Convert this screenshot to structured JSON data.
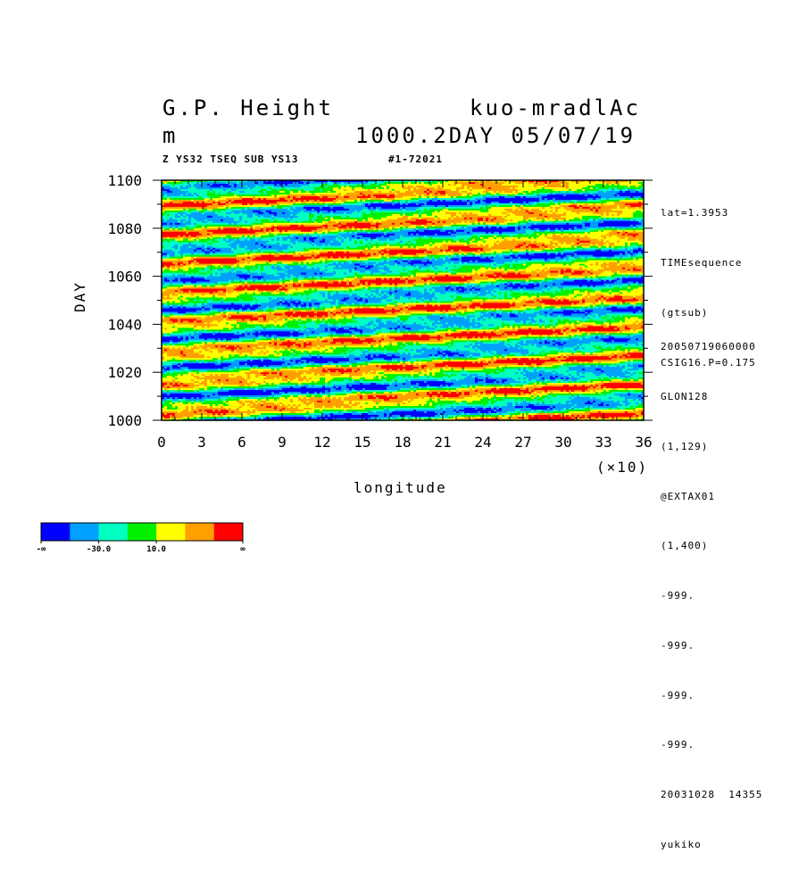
{
  "header": {
    "title_left": "G.P. Height",
    "title_right": "kuo-mradlAc",
    "units": "m",
    "subtitle": "1000.2DAY 05/07/19",
    "info_line": "Z YS32 TSEQ SUB YS13",
    "info_id": "#1-72021"
  },
  "side_info": {
    "top": [
      "lat=1.3953",
      "TIMEsequence",
      "(gtsub)",
      "CSIG16.P=0.175"
    ],
    "bottom": [
      "20050719060000",
      "GLON128",
      "(1,129)",
      "@EXTAX01",
      "(1,400)",
      "-999.",
      "-999.",
      "-999.",
      "-999.",
      "20031028  14355",
      "yukiko"
    ]
  },
  "colorbar": {
    "colors": [
      "#0000ff",
      "#00a0ff",
      "#00ffc0",
      "#00f000",
      "#ffff00",
      "#ffa000",
      "#ff0000"
    ],
    "labels": [
      "-∞",
      "-30.0",
      "10.0",
      "∞"
    ]
  },
  "chart_data": {
    "type": "heatmap",
    "title": "G.P. Height",
    "xlabel": "longitude",
    "ylabel": "DAY",
    "x_multiplier": "(×10)",
    "xlim": [
      0,
      36
    ],
    "ylim": [
      1000,
      1100
    ],
    "x_ticks": [
      "0",
      "3",
      "6",
      "9",
      "12",
      "15",
      "18",
      "21",
      "24",
      "27",
      "30",
      "33",
      "36"
    ],
    "y_ticks": [
      "1000",
      "1020",
      "1040",
      "1060",
      "1080",
      "1100"
    ],
    "contour_levels": [
      "-∞",
      "-30.0",
      "10.0",
      "∞"
    ],
    "pattern": "eastward-tilted bands (phase speed ~ 36 longitude units per 12 days)",
    "band_tilt_days_per_full_longitude": 12
  }
}
